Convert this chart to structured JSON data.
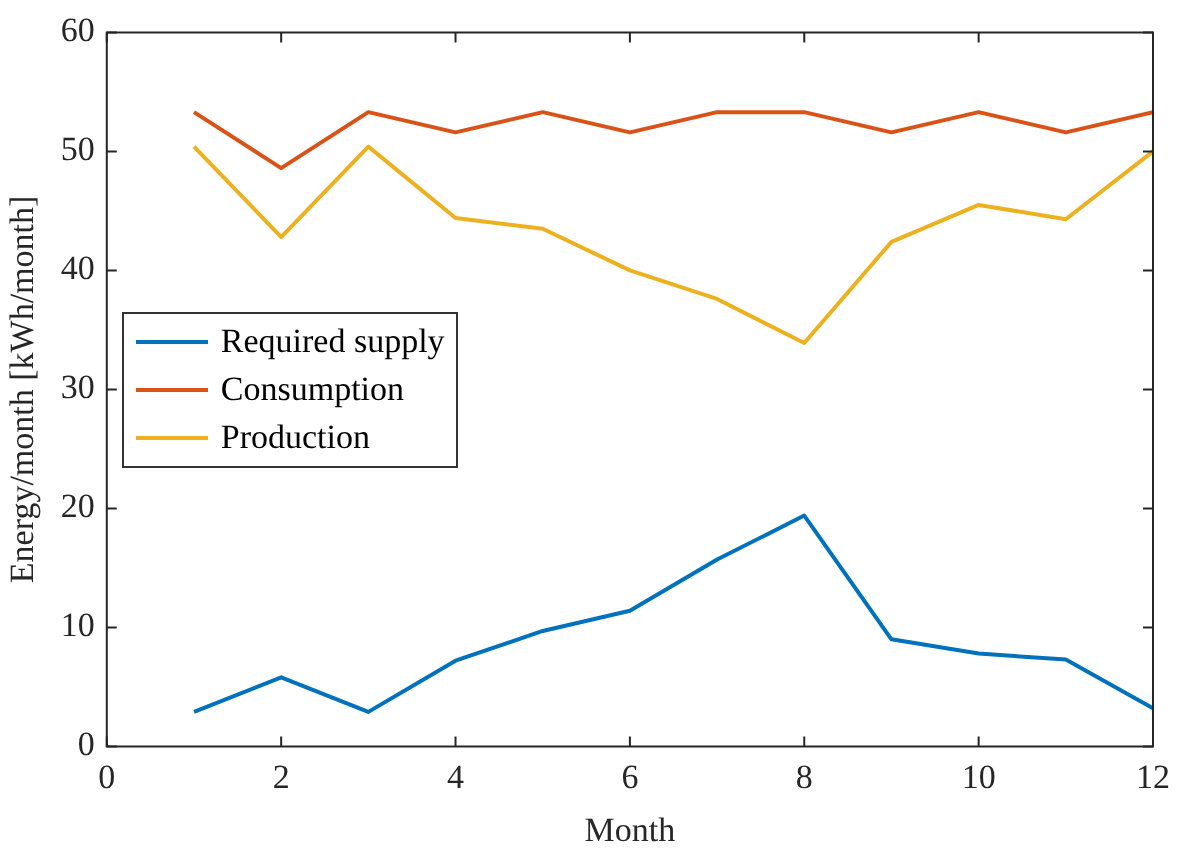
{
  "chart_data": {
    "type": "line",
    "xlabel": "Month",
    "ylabel": "Energy/month [kWh/month]",
    "x": [
      1,
      2,
      3,
      4,
      5,
      6,
      7,
      8,
      9,
      10,
      11,
      12
    ],
    "series": [
      {
        "name": "Required supply",
        "color": "#0072bd",
        "values": [
          2.9,
          5.8,
          2.9,
          7.2,
          9.7,
          11.4,
          15.7,
          19.4,
          9.0,
          7.8,
          7.3,
          3.2
        ]
      },
      {
        "name": "Consumption",
        "color": "#d95319",
        "values": [
          53.3,
          48.6,
          53.3,
          51.6,
          53.3,
          51.6,
          53.3,
          53.3,
          51.6,
          53.3,
          51.6,
          53.3
        ]
      },
      {
        "name": "Production",
        "color": "#edb120",
        "values": [
          50.4,
          42.8,
          50.4,
          44.4,
          43.5,
          40.0,
          37.6,
          33.9,
          42.4,
          45.5,
          44.3,
          50.0
        ]
      }
    ],
    "xlim": [
      0,
      12
    ],
    "xticks": [
      0,
      2,
      4,
      6,
      8,
      10,
      12
    ],
    "ylim": [
      0,
      60
    ],
    "yticks": [
      0,
      10,
      20,
      30,
      40,
      50,
      60
    ],
    "legend": "left",
    "grid": false,
    "marker": "none",
    "line_style": "solid"
  }
}
